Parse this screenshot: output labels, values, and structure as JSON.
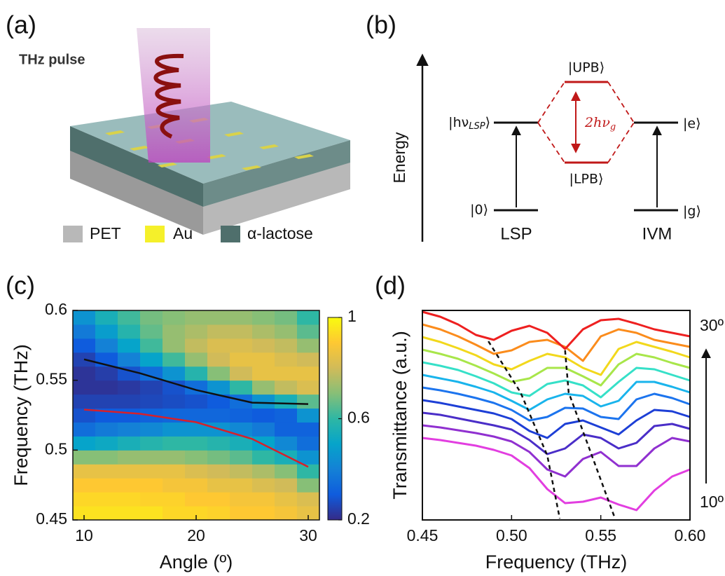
{
  "panel_a": {
    "label": "(a)",
    "annotation": "THz pulse",
    "legend": [
      "PET",
      "Au",
      "α-lactose"
    ]
  },
  "panel_b": {
    "label": "(b)",
    "axis_label": "Energy",
    "states": {
      "lsp_excited": {
        "main": "|hν",
        "sub": "LSP",
        "end": "⟩"
      },
      "upb": "|UPB⟩",
      "lpb": "|LPB⟩",
      "e": "|e⟩",
      "zero": "|0⟩",
      "g": "|g⟩"
    },
    "splitting": {
      "main": "2hν",
      "sub": "g"
    },
    "modes": [
      "LSP",
      "IVM"
    ]
  },
  "chart_data": [
    {
      "type": "heatmap",
      "label": "(c)",
      "xlabel": "Angle (º)",
      "ylabel": "Frequency (THz)",
      "x": [
        10,
        12,
        14,
        16,
        18,
        20,
        22,
        24,
        26,
        28,
        30
      ],
      "y": [
        0.455,
        0.465,
        0.475,
        0.485,
        0.495,
        0.505,
        0.515,
        0.525,
        0.535,
        0.545,
        0.555,
        0.565,
        0.575,
        0.585,
        0.595
      ],
      "z": [
        [
          0.95,
          0.95,
          0.95,
          0.95,
          0.93,
          0.93,
          0.92,
          0.9,
          0.9,
          0.88,
          0.85
        ],
        [
          0.93,
          0.93,
          0.93,
          0.92,
          0.92,
          0.9,
          0.9,
          0.88,
          0.88,
          0.85,
          0.82
        ],
        [
          0.9,
          0.9,
          0.9,
          0.9,
          0.88,
          0.88,
          0.85,
          0.85,
          0.82,
          0.8,
          0.7
        ],
        [
          0.85,
          0.85,
          0.85,
          0.85,
          0.85,
          0.82,
          0.8,
          0.78,
          0.75,
          0.7,
          0.6
        ],
        [
          0.7,
          0.7,
          0.72,
          0.72,
          0.72,
          0.7,
          0.68,
          0.65,
          0.6,
          0.55,
          0.45
        ],
        [
          0.5,
          0.52,
          0.55,
          0.58,
          0.6,
          0.6,
          0.58,
          0.55,
          0.5,
          0.42,
          0.35
        ],
        [
          0.35,
          0.38,
          0.4,
          0.42,
          0.45,
          0.45,
          0.45,
          0.42,
          0.38,
          0.32,
          0.32
        ],
        [
          0.28,
          0.3,
          0.3,
          0.32,
          0.33,
          0.33,
          0.33,
          0.32,
          0.3,
          0.32,
          0.45
        ],
        [
          0.25,
          0.25,
          0.25,
          0.26,
          0.27,
          0.28,
          0.3,
          0.35,
          0.45,
          0.55,
          0.65
        ],
        [
          0.22,
          0.22,
          0.23,
          0.25,
          0.28,
          0.35,
          0.45,
          0.6,
          0.72,
          0.78,
          0.82
        ],
        [
          0.22,
          0.24,
          0.28,
          0.35,
          0.45,
          0.58,
          0.7,
          0.8,
          0.85,
          0.85,
          0.85
        ],
        [
          0.25,
          0.3,
          0.4,
          0.5,
          0.62,
          0.72,
          0.8,
          0.85,
          0.85,
          0.82,
          0.8
        ],
        [
          0.3,
          0.4,
          0.5,
          0.62,
          0.72,
          0.78,
          0.82,
          0.82,
          0.8,
          0.78,
          0.72
        ],
        [
          0.38,
          0.48,
          0.58,
          0.66,
          0.72,
          0.75,
          0.78,
          0.78,
          0.75,
          0.72,
          0.65
        ],
        [
          0.45,
          0.55,
          0.62,
          0.68,
          0.7,
          0.72,
          0.72,
          0.72,
          0.7,
          0.68,
          0.6
        ]
      ],
      "zlim": [
        0.2,
        1
      ],
      "zticks": [
        0.2,
        0.6,
        1
      ],
      "colormap": [
        "#352a87",
        "#0f5cdd",
        "#1481d6",
        "#06a4ca",
        "#2eb7a4",
        "#87bf77",
        "#d1bb59",
        "#fec832",
        "#f9fb0e"
      ],
      "xlim": [
        9,
        31
      ],
      "ylim": [
        0.45,
        0.6
      ],
      "xticks": [
        10,
        20,
        30
      ],
      "yticks": [
        0.45,
        0.5,
        0.55,
        0.6
      ],
      "series": [
        {
          "color": "#111111",
          "x": [
            10,
            15,
            20,
            25,
            30
          ],
          "values": [
            0.565,
            0.555,
            0.543,
            0.534,
            0.533
          ]
        },
        {
          "color": "#d7202a",
          "x": [
            10,
            15,
            20,
            25,
            30
          ],
          "values": [
            0.529,
            0.526,
            0.52,
            0.508,
            0.488
          ]
        }
      ]
    },
    {
      "type": "line",
      "label": "(d)",
      "xlabel": "Frequency (THz)",
      "ylabel": "Transmittance (a.u.)",
      "x": [
        0.45,
        0.46,
        0.47,
        0.48,
        0.49,
        0.5,
        0.51,
        0.52,
        0.53,
        0.54,
        0.55,
        0.56,
        0.57,
        0.58,
        0.59,
        0.6
      ],
      "xlim": [
        0.45,
        0.6
      ],
      "ylim": [
        0,
        299
      ],
      "xticks": [
        0.45,
        {
          "value": 0.5,
          "label": "0.50"
        },
        0.55,
        {
          "value": 0.6,
          "label": "0.60"
        }
      ],
      "annotations": [
        "30º",
        "10º"
      ],
      "series": [
        {
          "color": "#e23ee0",
          "values": [
            117,
            114,
            110,
            106,
            100,
            92,
            74,
            44,
            24,
            26,
            32,
            22,
            14,
            42,
            62,
            72
          ]
        },
        {
          "color": "#9030d0",
          "values": [
            135,
            132,
            128,
            124,
            119,
            112,
            97,
            72,
            62,
            87,
            97,
            77,
            77,
            102,
            117,
            112
          ]
        },
        {
          "color": "#4a2ec8",
          "values": [
            153,
            150,
            145,
            140,
            135,
            129,
            114,
            94,
            102,
            122,
            117,
            102,
            110,
            134,
            137,
            130
          ]
        },
        {
          "color": "#1d3fd6",
          "values": [
            171,
            167,
            162,
            157,
            152,
            144,
            127,
            117,
            137,
            142,
            132,
            122,
            142,
            157,
            155,
            147
          ]
        },
        {
          "color": "#1c74ee",
          "values": [
            189,
            185,
            180,
            174,
            167,
            157,
            142,
            147,
            160,
            159,
            147,
            144,
            172,
            180,
            174,
            165
          ]
        },
        {
          "color": "#19b4ec",
          "values": [
            207,
            202,
            197,
            190,
            182,
            170,
            157,
            172,
            180,
            177,
            162,
            170,
            197,
            197,
            190,
            182
          ]
        },
        {
          "color": "#36e0c8",
          "values": [
            225,
            220,
            214,
            205,
            195,
            182,
            177,
            194,
            199,
            192,
            175,
            197,
            217,
            215,
            207,
            199
          ]
        },
        {
          "color": "#a8e64a",
          "values": [
            243,
            237,
            230,
            220,
            209,
            197,
            202,
            217,
            217,
            205,
            192,
            222,
            237,
            232,
            224,
            217
          ]
        },
        {
          "color": "#f2d81c",
          "values": [
            261,
            254,
            245,
            235,
            222,
            215,
            227,
            237,
            232,
            217,
            207,
            244,
            254,
            247,
            240,
            232
          ]
        },
        {
          "color": "#fb8c1c",
          "values": [
            279,
            272,
            262,
            250,
            237,
            242,
            254,
            257,
            247,
            227,
            262,
            272,
            267,
            257,
            252,
            247
          ]
        },
        {
          "color": "#ee2020",
          "values": [
            297,
            290,
            279,
            264,
            257,
            270,
            277,
            267,
            244,
            272,
            285,
            287,
            280,
            272,
            267,
            262
          ]
        }
      ],
      "guides": [
        {
          "color": "#111111",
          "x": [
            0.487,
            0.505,
            0.52,
            0.527
          ],
          "values": [
            255,
            182,
            92,
            2
          ]
        },
        {
          "color": "#111111",
          "x": [
            0.53,
            0.532,
            0.545,
            0.558
          ],
          "values": [
            242,
            182,
            92,
            2
          ]
        }
      ]
    }
  ]
}
